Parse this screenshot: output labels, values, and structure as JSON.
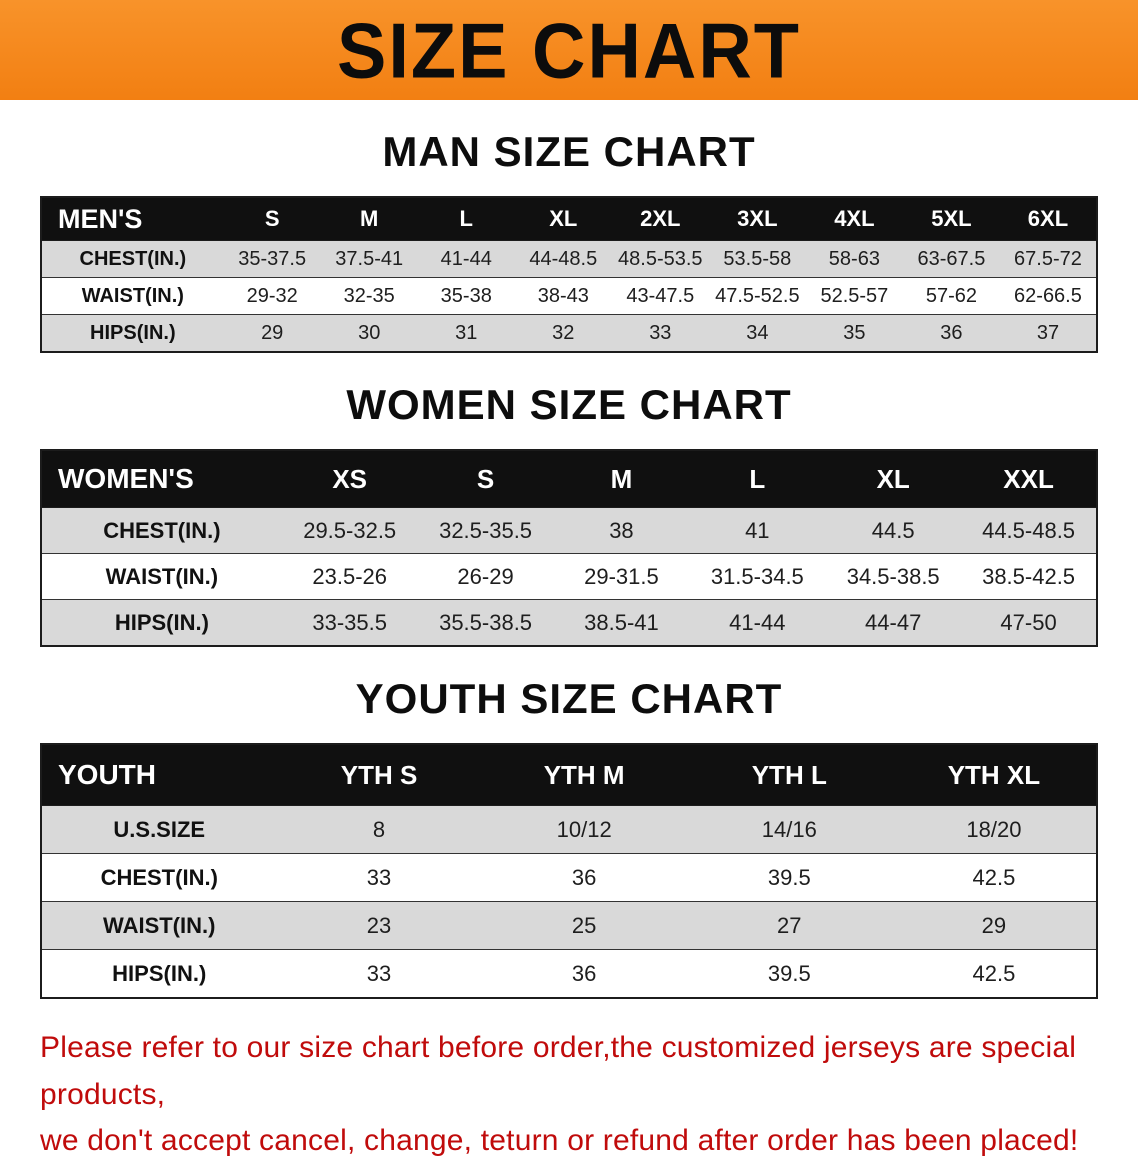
{
  "banner": {
    "title": "SIZE CHART"
  },
  "colors": {
    "banner_bg": "#f6871f",
    "header_bar": "#101010",
    "row_shade": "#d9d9d9",
    "note_red": "#c00b0b"
  },
  "sections": [
    {
      "heading": "MAN SIZE CHART",
      "table": {
        "header": [
          "MEN'S",
          "S",
          "M",
          "L",
          "XL",
          "2XL",
          "3XL",
          "4XL",
          "5XL",
          "6XL"
        ],
        "rows": [
          [
            "CHEST(IN.)",
            "35-37.5",
            "37.5-41",
            "41-44",
            "44-48.5",
            "48.5-53.5",
            "53.5-58",
            "58-63",
            "63-67.5",
            "67.5-72"
          ],
          [
            "WAIST(IN.)",
            "29-32",
            "32-35",
            "35-38",
            "38-43",
            "43-47.5",
            "47.5-52.5",
            "52.5-57",
            "57-62",
            "62-66.5"
          ],
          [
            "HIPS(IN.)",
            "29",
            "30",
            "31",
            "32",
            "33",
            "34",
            "35",
            "36",
            "37"
          ]
        ]
      }
    },
    {
      "heading": "WOMEN SIZE CHART",
      "table": {
        "header": [
          "WOMEN'S",
          "XS",
          "S",
          "M",
          "L",
          "XL",
          "XXL"
        ],
        "rows": [
          [
            "CHEST(IN.)",
            "29.5-32.5",
            "32.5-35.5",
            "38",
            "41",
            "44.5",
            "44.5-48.5"
          ],
          [
            "WAIST(IN.)",
            "23.5-26",
            "26-29",
            "29-31.5",
            "31.5-34.5",
            "34.5-38.5",
            "38.5-42.5"
          ],
          [
            "HIPS(IN.)",
            "33-35.5",
            "35.5-38.5",
            "38.5-41",
            "41-44",
            "44-47",
            "47-50"
          ]
        ]
      }
    },
    {
      "heading": "YOUTH SIZE CHART",
      "table": {
        "header": [
          "YOUTH",
          "YTH S",
          "YTH M",
          "YTH L",
          "YTH XL"
        ],
        "rows": [
          [
            "U.S.SIZE",
            "8",
            "10/12",
            "14/16",
            "18/20"
          ],
          [
            "CHEST(IN.)",
            "33",
            "36",
            "39.5",
            "42.5"
          ],
          [
            "WAIST(IN.)",
            "23",
            "25",
            "27",
            "29"
          ],
          [
            "HIPS(IN.)",
            "33",
            "36",
            "39.5",
            "42.5"
          ]
        ]
      }
    }
  ],
  "footnote": {
    "line1": "Please refer to our size chart before order,the customized jerseys are special products,",
    "line2": "we don't accept cancel, change, teturn or refund after order has been placed!"
  }
}
